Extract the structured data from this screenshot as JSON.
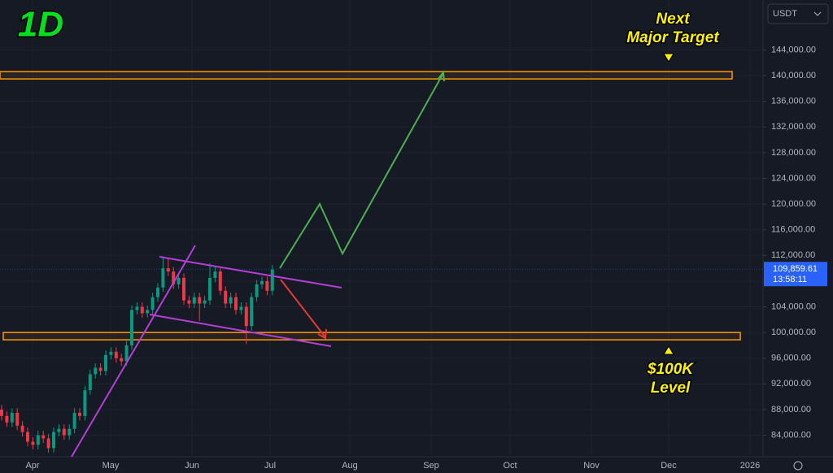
{
  "chart_data": {
    "type": "candlestick",
    "title": "1D",
    "currency": "USDT",
    "candles": [
      [
        88000,
        88700,
        86300,
        87000
      ],
      [
        87000,
        87700,
        85300,
        86000
      ],
      [
        86000,
        88200,
        85300,
        87500
      ],
      [
        87500,
        88200,
        84800,
        85500
      ],
      [
        85500,
        86200,
        83800,
        84500
      ],
      [
        84500,
        85200,
        82300,
        83000
      ],
      [
        83000,
        83700,
        81800,
        82500
      ],
      [
        82500,
        84700,
        81800,
        84000
      ],
      [
        84000,
        84700,
        82800,
        83500
      ],
      [
        83500,
        84200,
        81300,
        82000
      ],
      [
        82000,
        85200,
        81300,
        84500
      ],
      [
        84500,
        85700,
        83800,
        85000
      ],
      [
        85000,
        85700,
        83300,
        84000
      ],
      [
        84000,
        85700,
        83300,
        85000
      ],
      [
        85000,
        88200,
        84300,
        87500
      ],
      [
        87500,
        88200,
        86300,
        87000
      ],
      [
        87000,
        91700,
        86300,
        91000
      ],
      [
        91000,
        94200,
        90300,
        93500
      ],
      [
        93500,
        95200,
        92800,
        94500
      ],
      [
        94500,
        95200,
        93300,
        94000
      ],
      [
        94000,
        97200,
        93300,
        96500
      ],
      [
        96500,
        97700,
        95800,
        97000
      ],
      [
        97000,
        97700,
        95300,
        96000
      ],
      [
        96000,
        96700,
        94800,
        95500
      ],
      [
        95500,
        98700,
        94800,
        98000
      ],
      [
        98000,
        104200,
        97300,
        103500
      ],
      [
        103500,
        104700,
        102800,
        104000
      ],
      [
        104000,
        104700,
        102300,
        103000
      ],
      [
        103000,
        104200,
        102300,
        103500
      ],
      [
        103500,
        106200,
        102800,
        105500
      ],
      [
        105500,
        107700,
        104800,
        107000
      ],
      [
        107000,
        111900,
        106300,
        110000
      ],
      [
        110000,
        111700,
        108800,
        109500
      ],
      [
        109500,
        110200,
        106800,
        107500
      ],
      [
        107500,
        109200,
        106800,
        108500
      ],
      [
        108500,
        109200,
        104300,
        105000
      ],
      [
        105000,
        105700,
        103800,
        104500
      ],
      [
        104500,
        106200,
        103800,
        105500
      ],
      [
        105500,
        106200,
        101800,
        104500
      ],
      [
        104500,
        105700,
        103800,
        105000
      ],
      [
        105000,
        110800,
        104300,
        108500
      ],
      [
        108500,
        110200,
        107800,
        109500
      ],
      [
        109500,
        110200,
        105800,
        106500
      ],
      [
        106500,
        107200,
        103800,
        104500
      ],
      [
        104500,
        106200,
        103800,
        105500
      ],
      [
        105500,
        106200,
        102800,
        103500
      ],
      [
        103500,
        104700,
        102800,
        104000
      ],
      [
        104000,
        104700,
        98200,
        101000
      ],
      [
        101000,
        106200,
        100300,
        105500
      ],
      [
        105500,
        108200,
        104800,
        107500
      ],
      [
        107500,
        108700,
        106800,
        108000
      ],
      [
        108000,
        108700,
        105800,
        106500
      ],
      [
        106500,
        110500,
        105800,
        109800
      ]
    ],
    "up_color": "#089981",
    "down_color": "#f23645",
    "xticks": [
      "Apr",
      "May",
      "Jun",
      "Jul",
      "Aug",
      "Sep",
      "Oct",
      "Nov",
      "Dec",
      "2026"
    ],
    "ylim": [
      80650,
      151780
    ],
    "yticks": [
      {
        "value": 84000,
        "label": "84,000.00"
      },
      {
        "value": 88000,
        "label": "88,000.00"
      },
      {
        "value": 92000,
        "label": "92,000.00"
      },
      {
        "value": 96000,
        "label": "96,000.00"
      },
      {
        "value": 100000,
        "label": "100,000.00"
      },
      {
        "value": 104000,
        "label": "104,000.00"
      },
      {
        "value": 108000,
        "label": "108,000.00"
      },
      {
        "value": 112000,
        "label": "112,000.00"
      },
      {
        "value": 116000,
        "label": "116,000.00"
      },
      {
        "value": 120000,
        "label": "120,000.00"
      },
      {
        "value": 124000,
        "label": "124,000.00"
      },
      {
        "value": 128000,
        "label": "128,000.00"
      },
      {
        "value": 132000,
        "label": "132,000.00"
      },
      {
        "value": 136000,
        "label": "136,000.00"
      },
      {
        "value": 140000,
        "label": "140,000.00"
      },
      {
        "value": 144000,
        "label": "144,000.00"
      }
    ],
    "grid": true,
    "last_price": {
      "value": 109859.61,
      "label": "109,859.61"
    },
    "countdown": "13:58:11",
    "zones": [
      [
        139490,
        140630
      ],
      [
        98860,
        100000
      ]
    ],
    "annotations": {
      "target_line1": "Next",
      "target_line2": "Major Target",
      "level_line1": "$100K",
      "level_line2": "Level"
    }
  }
}
